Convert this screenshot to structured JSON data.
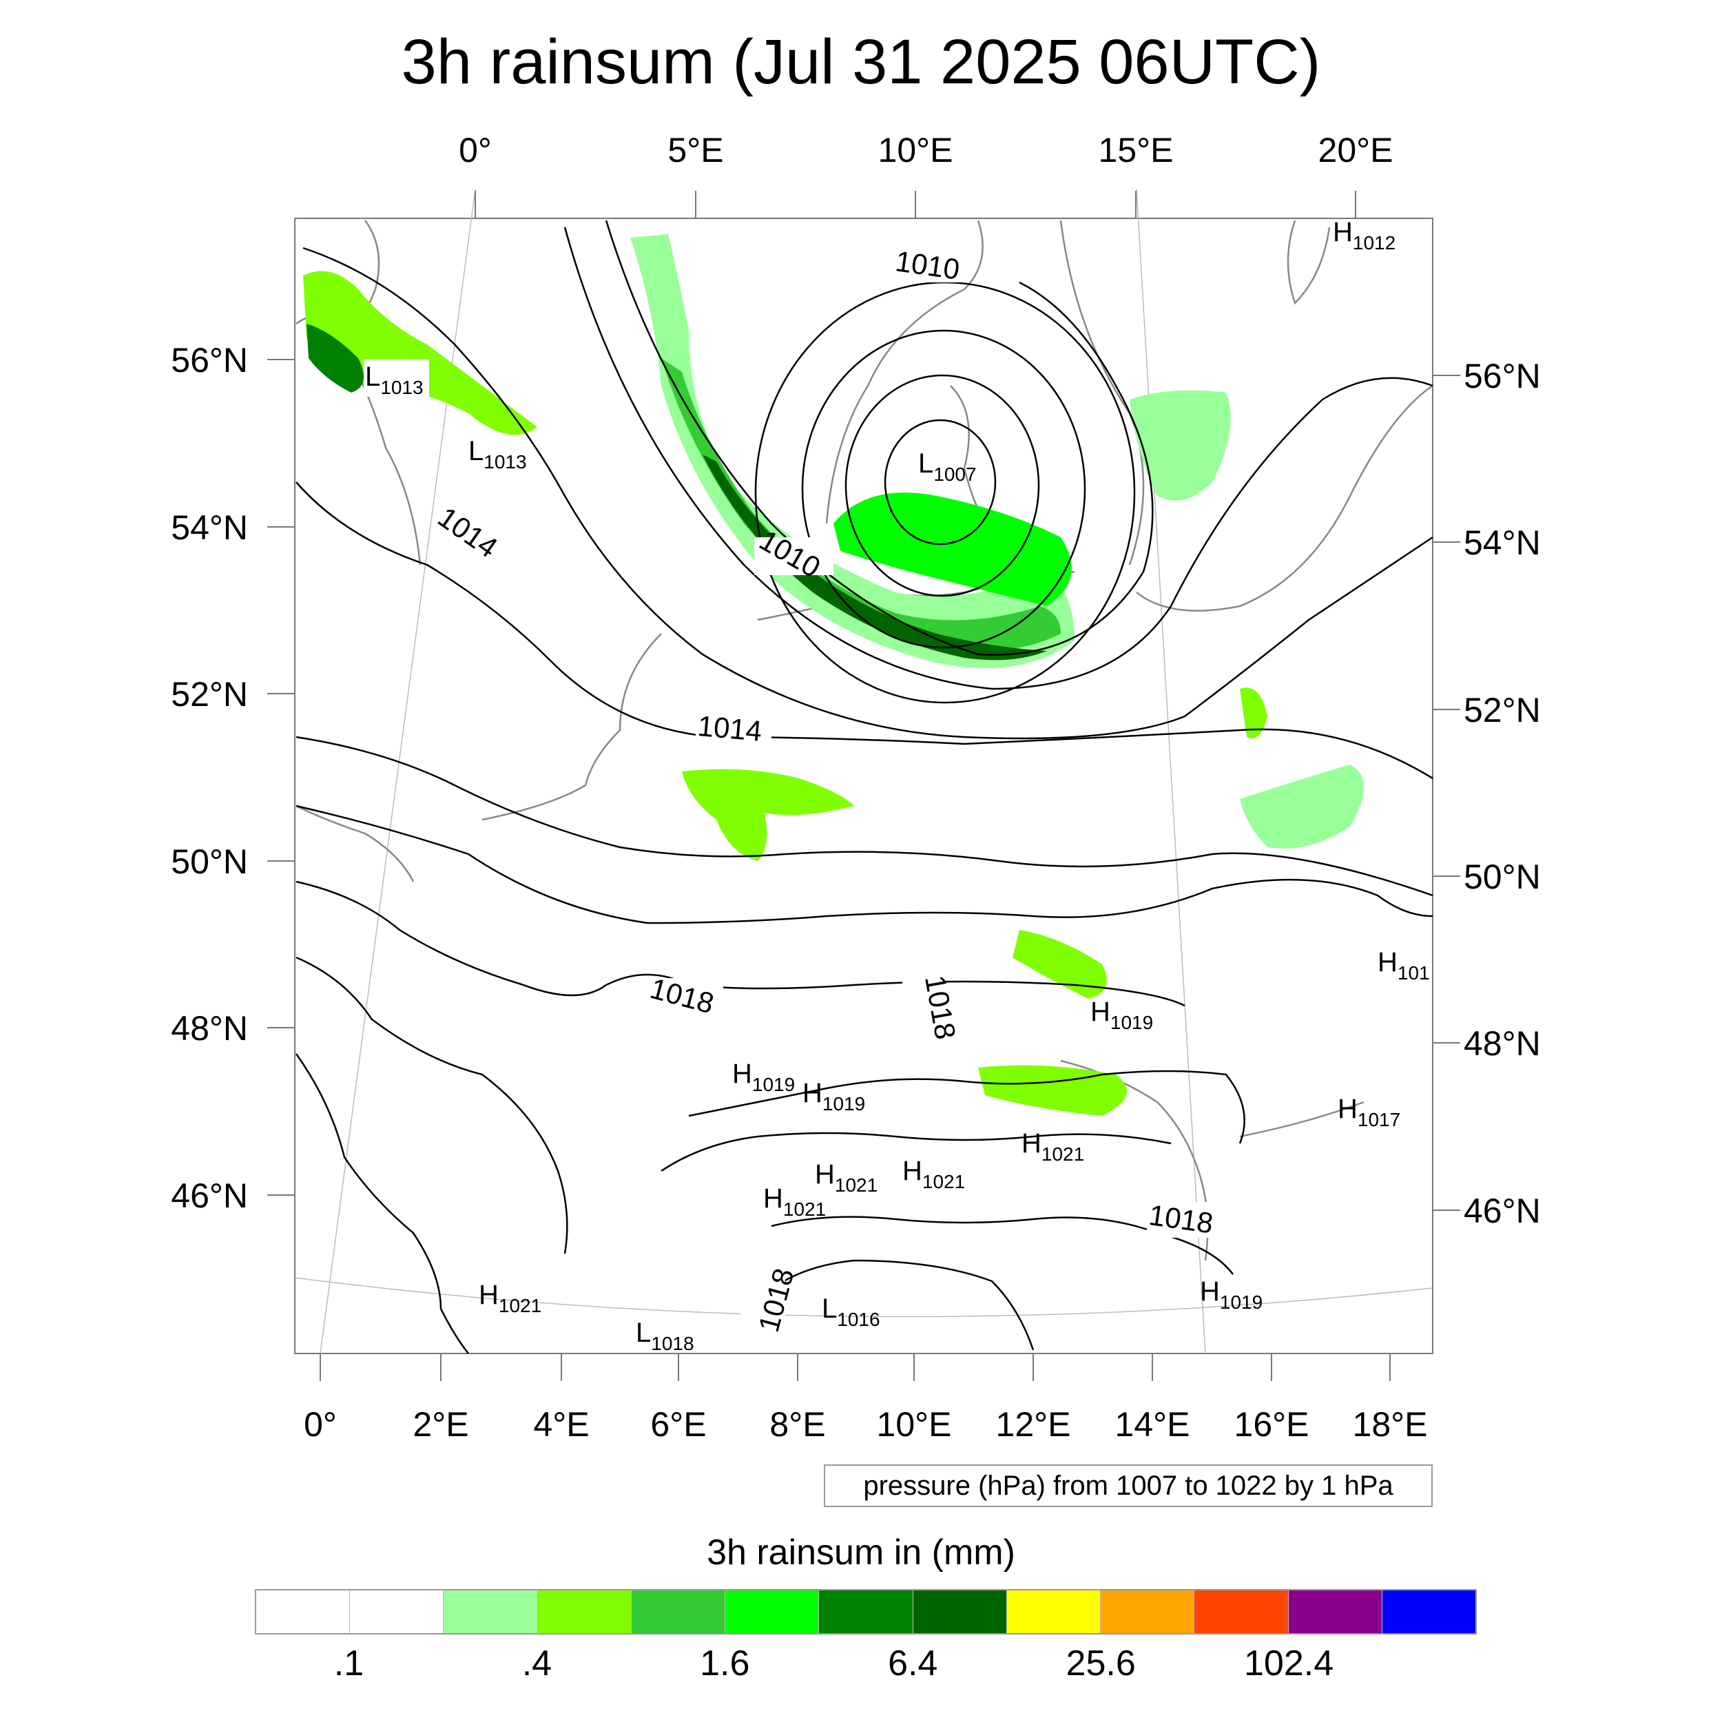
{
  "title": "3h rainsum (Jul 31 2025 06UTC)",
  "top_lon_labels": [
    "0°",
    "5°E",
    "10°E",
    "15°E",
    "20°E"
  ],
  "bottom_lon_labels": [
    "0°",
    "2°E",
    "4°E",
    "6°E",
    "8°E",
    "10°E",
    "12°E",
    "14°E",
    "16°E",
    "18°E"
  ],
  "left_lat_labels": [
    "56°N",
    "54°N",
    "52°N",
    "50°N",
    "48°N",
    "46°N"
  ],
  "right_lat_labels": [
    "56°N",
    "54°N",
    "52°N",
    "50°N",
    "48°N",
    "46°N"
  ],
  "pressure_labels": {
    "p1010_north": "1010",
    "p1010_front": "1010",
    "p1014_north": "1014",
    "p1014_mid": "1014",
    "p1018_west": "1018",
    "p1018_center": "1018",
    "p1018_alps": "1018",
    "p1018_south": "1018"
  },
  "pressure_centers": [
    {
      "type": "H",
      "value": "1012"
    },
    {
      "type": "L",
      "value": "1013"
    },
    {
      "type": "L",
      "value": "1013"
    },
    {
      "type": "L",
      "value": "1007"
    },
    {
      "type": "H",
      "value": "101"
    },
    {
      "type": "H",
      "value": "1019"
    },
    {
      "type": "H",
      "value": "1019"
    },
    {
      "type": "H",
      "value": "1019"
    },
    {
      "type": "H",
      "value": "1017"
    },
    {
      "type": "H",
      "value": "1021"
    },
    {
      "type": "H",
      "value": "1021"
    },
    {
      "type": "H",
      "value": "1021"
    },
    {
      "type": "H",
      "value": "1021"
    },
    {
      "type": "H",
      "value": "1021"
    },
    {
      "type": "H",
      "value": "1019"
    },
    {
      "type": "L",
      "value": "1016"
    },
    {
      "type": "L",
      "value": "1018"
    }
  ],
  "info_text": "pressure (hPa) from 1007 to 1022 by 1 hPa",
  "colorbar": {
    "title": "3h rainsum in (mm)",
    "colors": [
      "#ffffff",
      "#ffffff",
      "#99ff99",
      "#80ff00",
      "#33cc33",
      "#00ff00",
      "#008000",
      "#006400",
      "#ffff00",
      "#ffa500",
      "#ff4500",
      "#8b008b",
      "#0000ff"
    ],
    "tick_labels": [
      ".1",
      ".4",
      "1.6",
      "6.4",
      "25.6",
      "102.4"
    ],
    "tick_boundary_index": [
      1,
      3,
      5,
      7,
      9,
      11
    ]
  }
}
